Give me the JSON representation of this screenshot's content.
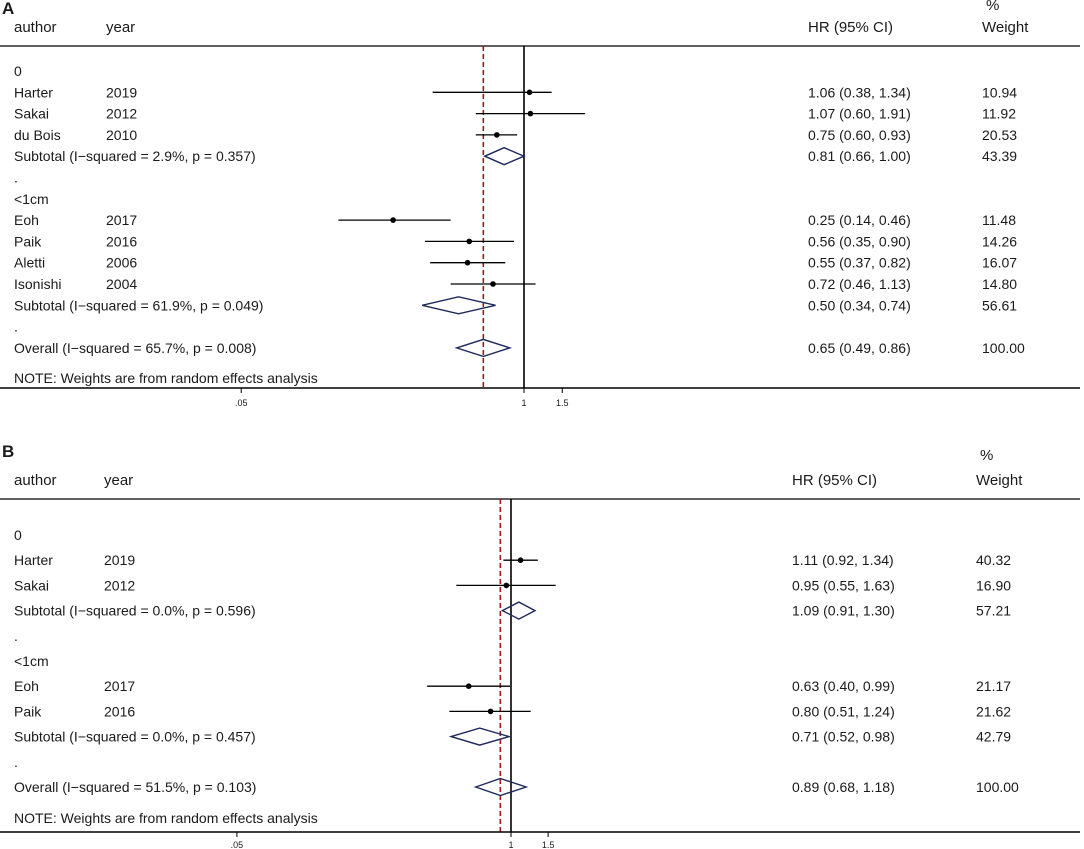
{
  "panels": [
    {
      "letter": "A",
      "headers": {
        "author": "author",
        "year": "year",
        "hr": "HR (95% CI)",
        "weight_pct": "%",
        "weight": "Weight"
      },
      "rows": [
        {
          "type": "group",
          "label": "0"
        },
        {
          "type": "study",
          "author": "Harter",
          "year": "2019",
          "hr": 1.06,
          "lo": 0.38,
          "hi": 1.34,
          "ci_text": "1.06 (0.38, 1.34)",
          "weight": "10.94"
        },
        {
          "type": "study",
          "author": "Sakai",
          "year": "2012",
          "hr": 1.07,
          "lo": 0.6,
          "hi": 1.91,
          "ci_text": "1.07 (0.60, 1.91)",
          "weight": "11.92"
        },
        {
          "type": "study",
          "author": "du Bois",
          "year": "2010",
          "hr": 0.75,
          "lo": 0.6,
          "hi": 0.93,
          "ci_text": "0.75 (0.60, 0.93)",
          "weight": "20.53"
        },
        {
          "type": "subtotal",
          "label": "Subtotal  (I−squared = 2.9%, p = 0.357)",
          "hr": 0.81,
          "lo": 0.66,
          "hi": 1.0,
          "ci_text": "0.81 (0.66, 1.00)",
          "weight": "43.39"
        },
        {
          "type": "dot",
          "label": "."
        },
        {
          "type": "group",
          "label": "<1cm"
        },
        {
          "type": "study",
          "author": "Eoh",
          "year": "2017",
          "hr": 0.25,
          "lo": 0.14,
          "hi": 0.46,
          "ci_text": "0.25 (0.14, 0.46)",
          "weight": "11.48"
        },
        {
          "type": "study",
          "author": "Paik",
          "year": "2016",
          "hr": 0.56,
          "lo": 0.35,
          "hi": 0.9,
          "ci_text": "0.56 (0.35, 0.90)",
          "weight": "14.26"
        },
        {
          "type": "study",
          "author": "Aletti",
          "year": "2006",
          "hr": 0.55,
          "lo": 0.37,
          "hi": 0.82,
          "ci_text": "0.55 (0.37, 0.82)",
          "weight": "16.07"
        },
        {
          "type": "study",
          "author": "Isonishi",
          "year": "2004",
          "hr": 0.72,
          "lo": 0.46,
          "hi": 1.13,
          "ci_text": "0.72 (0.46, 1.13)",
          "weight": "14.80"
        },
        {
          "type": "subtotal",
          "label": "Subtotal  (I−squared = 61.9%, p = 0.049)",
          "hr": 0.5,
          "lo": 0.34,
          "hi": 0.74,
          "ci_text": "0.50 (0.34, 0.74)",
          "weight": "56.61"
        },
        {
          "type": "dot",
          "label": "."
        },
        {
          "type": "overall",
          "label": "Overall  (I−squared = 65.7%, p = 0.008)",
          "hr": 0.65,
          "lo": 0.49,
          "hi": 0.86,
          "ci_text": "0.65 (0.49, 0.86)",
          "weight": "100.00"
        }
      ],
      "note": "NOTE: Weights are from random effects analysis",
      "ticks": [
        ".05",
        "1",
        "1.5"
      ],
      "overall_hr": 0.65
    },
    {
      "letter": "B",
      "headers": {
        "author": "author",
        "year": "year",
        "hr": "HR (95% CI)",
        "weight_pct": "%",
        "weight": "Weight"
      },
      "rows": [
        {
          "type": "group",
          "label": "0"
        },
        {
          "type": "study",
          "author": "Harter",
          "year": "2019",
          "hr": 1.11,
          "lo": 0.92,
          "hi": 1.34,
          "ci_text": "1.11 (0.92, 1.34)",
          "weight": "40.32"
        },
        {
          "type": "study",
          "author": "Sakai",
          "year": "2012",
          "hr": 0.95,
          "lo": 0.55,
          "hi": 1.63,
          "ci_text": "0.95 (0.55, 1.63)",
          "weight": "16.90"
        },
        {
          "type": "subtotal",
          "label": "Subtotal  (I−squared = 0.0%, p = 0.596)",
          "hr": 1.09,
          "lo": 0.91,
          "hi": 1.3,
          "ci_text": "1.09 (0.91, 1.30)",
          "weight": "57.21"
        },
        {
          "type": "dot",
          "label": "."
        },
        {
          "type": "group",
          "label": "<1cm"
        },
        {
          "type": "study",
          "author": "Eoh",
          "year": "2017",
          "hr": 0.63,
          "lo": 0.4,
          "hi": 0.99,
          "ci_text": "0.63 (0.40, 0.99)",
          "weight": "21.17"
        },
        {
          "type": "study",
          "author": "Paik",
          "year": "2016",
          "hr": 0.8,
          "lo": 0.51,
          "hi": 1.24,
          "ci_text": "0.80 (0.51, 1.24)",
          "weight": "21.62"
        },
        {
          "type": "subtotal",
          "label": "Subtotal  (I−squared = 0.0%, p = 0.457)",
          "hr": 0.71,
          "lo": 0.52,
          "hi": 0.98,
          "ci_text": "0.71 (0.52, 0.98)",
          "weight": "42.79"
        },
        {
          "type": "dot",
          "label": "."
        },
        {
          "type": "overall",
          "label": "Overall  (I−squared = 51.5%, p = 0.103)",
          "hr": 0.89,
          "lo": 0.68,
          "hi": 1.18,
          "ci_text": "0.89 (0.68, 1.18)",
          "weight": "100.00"
        }
      ],
      "note": "NOTE: Weights are from random effects analysis",
      "ticks": [
        ".05",
        "1",
        "1.5"
      ],
      "overall_hr": 0.89
    }
  ],
  "chart_data": [
    {
      "type": "forest",
      "panel": "A",
      "x_scale": "log",
      "null_line": 1,
      "xticks": [
        0.05,
        1,
        1.5
      ],
      "studies": [
        {
          "group": "0",
          "author": "Harter",
          "year": "2019",
          "hr": 1.06,
          "lo": 0.38,
          "hi": 1.34,
          "weight": 10.94
        },
        {
          "group": "0",
          "author": "Sakai",
          "year": "2012",
          "hr": 1.07,
          "lo": 0.6,
          "hi": 1.91,
          "weight": 11.92
        },
        {
          "group": "0",
          "author": "du Bois",
          "year": "2010",
          "hr": 0.75,
          "lo": 0.6,
          "hi": 0.93,
          "weight": 20.53
        },
        {
          "group": "<1cm",
          "author": "Eoh",
          "year": "2017",
          "hr": 0.25,
          "lo": 0.14,
          "hi": 0.46,
          "weight": 11.48
        },
        {
          "group": "<1cm",
          "author": "Paik",
          "year": "2016",
          "hr": 0.56,
          "lo": 0.35,
          "hi": 0.9,
          "weight": 14.26
        },
        {
          "group": "<1cm",
          "author": "Aletti",
          "year": "2006",
          "hr": 0.55,
          "lo": 0.37,
          "hi": 0.82,
          "weight": 16.07
        },
        {
          "group": "<1cm",
          "author": "Isonishi",
          "year": "2004",
          "hr": 0.72,
          "lo": 0.46,
          "hi": 1.13,
          "weight": 14.8
        }
      ],
      "subtotals": [
        {
          "group": "0",
          "hr": 0.81,
          "lo": 0.66,
          "hi": 1.0,
          "weight": 43.39,
          "i_squared": "2.9%",
          "p": 0.357
        },
        {
          "group": "<1cm",
          "hr": 0.5,
          "lo": 0.34,
          "hi": 0.74,
          "weight": 56.61,
          "i_squared": "61.9%",
          "p": 0.049
        }
      ],
      "overall": {
        "hr": 0.65,
        "lo": 0.49,
        "hi": 0.86,
        "weight": 100.0,
        "i_squared": "65.7%",
        "p": 0.008
      }
    },
    {
      "type": "forest",
      "panel": "B",
      "x_scale": "log",
      "null_line": 1,
      "xticks": [
        0.05,
        1,
        1.5
      ],
      "studies": [
        {
          "group": "0",
          "author": "Harter",
          "year": "2019",
          "hr": 1.11,
          "lo": 0.92,
          "hi": 1.34,
          "weight": 40.32
        },
        {
          "group": "0",
          "author": "Sakai",
          "year": "2012",
          "hr": 0.95,
          "lo": 0.55,
          "hi": 1.63,
          "weight": 16.9
        },
        {
          "group": "<1cm",
          "author": "Eoh",
          "year": "2017",
          "hr": 0.63,
          "lo": 0.4,
          "hi": 0.99,
          "weight": 21.17
        },
        {
          "group": "<1cm",
          "author": "Paik",
          "year": "2016",
          "hr": 0.8,
          "lo": 0.51,
          "hi": 1.24,
          "weight": 21.62
        }
      ],
      "subtotals": [
        {
          "group": "0",
          "hr": 1.09,
          "lo": 0.91,
          "hi": 1.3,
          "weight": 57.21,
          "i_squared": "0.0%",
          "p": 0.596
        },
        {
          "group": "<1cm",
          "hr": 0.71,
          "lo": 0.52,
          "hi": 0.98,
          "weight": 42.79,
          "i_squared": "0.0%",
          "p": 0.457
        }
      ],
      "overall": {
        "hr": 0.89,
        "lo": 0.68,
        "hi": 1.18,
        "weight": 100.0,
        "i_squared": "51.5%",
        "p": 0.103
      }
    }
  ],
  "colors": {
    "text": "#1a1a1a",
    "diamond": "#1f2a5c",
    "overall_line": "#9b1c1c",
    "null_line": "#000000"
  }
}
